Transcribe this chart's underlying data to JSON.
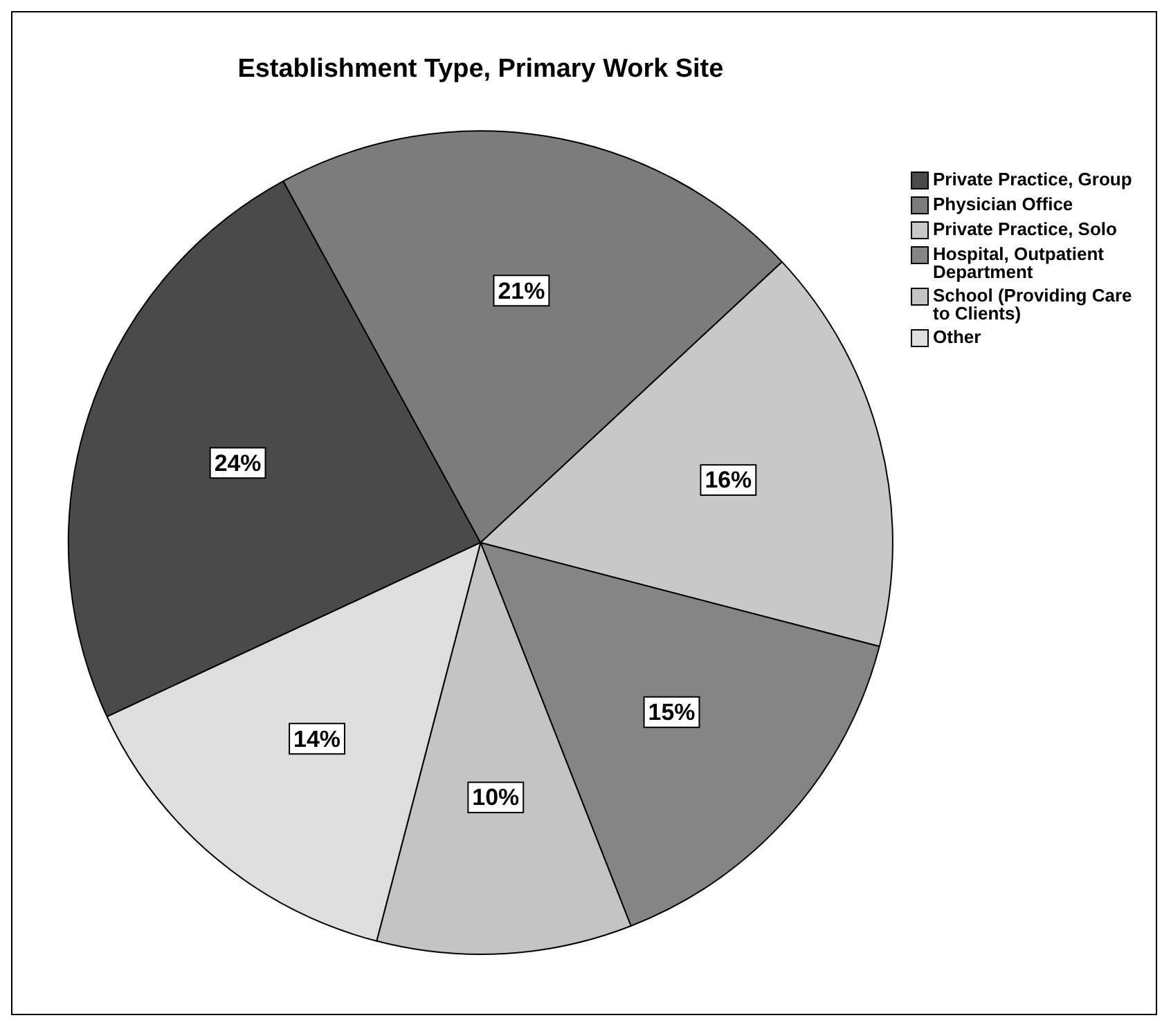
{
  "chart_data": {
    "type": "pie",
    "title": "Establishment Type, Primary Work Site",
    "categories": [
      "Private Practice, Group",
      "Physician Office",
      "Private Practice, Solo",
      "Hospital, Outpatient Department",
      "School (Providing Care to Clients)",
      "Other"
    ],
    "values": [
      24,
      21,
      16,
      15,
      10,
      14
    ],
    "value_labels": [
      "24%",
      "21%",
      "16%",
      "15%",
      "10%",
      "14%"
    ],
    "colors": [
      "#4a4a4a",
      "#7c7c7c",
      "#c8c8c8",
      "#858585",
      "#c4c4c4",
      "#dedede"
    ],
    "legend": "top right"
  }
}
